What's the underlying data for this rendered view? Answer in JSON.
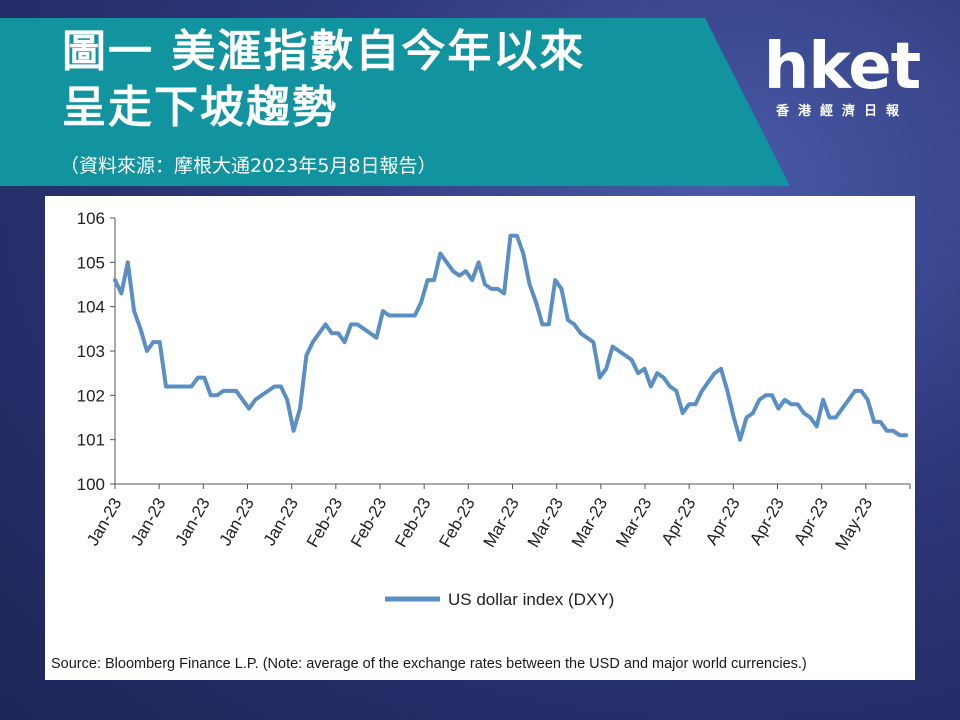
{
  "header": {
    "title_line1": "圖一 美滙指數自今年以來",
    "title_line2": "呈走下坡趨勢",
    "subtitle": "（資料來源：摩根大通2023年5月8日報告）"
  },
  "logo": {
    "text": "hket",
    "sub": "香港經濟日報"
  },
  "colors": {
    "banner": "#1193a0",
    "line": "#5a8fc4",
    "background": "#2c3778"
  },
  "chart_data": {
    "type": "line",
    "title": "",
    "xlabel": "",
    "ylabel": "",
    "ylim": [
      100,
      106
    ],
    "yticks": [
      100,
      101,
      102,
      103,
      104,
      105,
      106
    ],
    "xtick_labels": [
      "Jan-23",
      "Jan-23",
      "Jan-23",
      "Jan-23",
      "Jan-23",
      "Feb-23",
      "Feb-23",
      "Feb-23",
      "Feb-23",
      "Mar-23",
      "Mar-23",
      "Mar-23",
      "Mar-23",
      "Apr-23",
      "Apr-23",
      "Apr-23",
      "Apr-23",
      "May-23"
    ],
    "grid": false,
    "legend": "bottom-center",
    "series": [
      {
        "name": "US dollar index (DXY)",
        "values": [
          104.6,
          104.3,
          105.0,
          103.9,
          103.5,
          103.0,
          103.2,
          103.2,
          102.2,
          102.2,
          102.2,
          102.2,
          102.2,
          102.4,
          102.4,
          102.0,
          102.0,
          102.1,
          102.1,
          102.1,
          101.9,
          101.7,
          101.9,
          102.0,
          102.1,
          102.2,
          102.2,
          101.9,
          101.2,
          101.7,
          102.9,
          103.2,
          103.4,
          103.6,
          103.4,
          103.4,
          103.2,
          103.6,
          103.6,
          103.5,
          103.4,
          103.3,
          103.9,
          103.8,
          103.8,
          103.8,
          103.8,
          103.8,
          104.1,
          104.6,
          104.6,
          105.2,
          105.0,
          104.8,
          104.7,
          104.8,
          104.6,
          105.0,
          104.5,
          104.4,
          104.4,
          104.3,
          105.6,
          105.6,
          105.2,
          104.5,
          104.1,
          103.6,
          103.6,
          104.6,
          104.4,
          103.7,
          103.6,
          103.4,
          103.3,
          103.2,
          102.4,
          102.6,
          103.1,
          103.0,
          102.9,
          102.8,
          102.5,
          102.6,
          102.2,
          102.5,
          102.4,
          102.2,
          102.1,
          101.6,
          101.8,
          101.8,
          102.1,
          102.3,
          102.5,
          102.6,
          102.1,
          101.5,
          101.0,
          101.5,
          101.6,
          101.9,
          102.0,
          102.0,
          101.7,
          101.9,
          101.8,
          101.8,
          101.6,
          101.5,
          101.3,
          101.9,
          101.5,
          101.5,
          101.7,
          101.9,
          102.1,
          102.1,
          101.9,
          101.4,
          101.4,
          101.2,
          101.2,
          101.1,
          101.1
        ]
      }
    ],
    "source": "Source: Bloomberg Finance L.P. (Note: average of the exchange rates between the USD and major world currencies.)"
  }
}
